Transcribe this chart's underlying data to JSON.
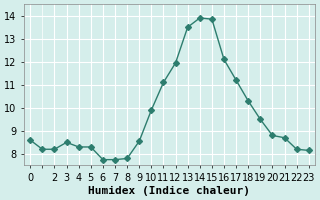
{
  "x": [
    0,
    1,
    2,
    3,
    4,
    5,
    6,
    7,
    8,
    9,
    10,
    11,
    12,
    13,
    14,
    15,
    16,
    17,
    18,
    19,
    20,
    21,
    22,
    23
  ],
  "y": [
    8.6,
    8.2,
    8.2,
    8.5,
    8.3,
    8.3,
    7.75,
    7.75,
    7.8,
    8.55,
    9.9,
    11.1,
    11.95,
    13.5,
    13.9,
    13.85,
    12.1,
    11.2,
    10.3,
    9.5,
    8.8,
    8.7,
    8.2,
    8.15
  ],
  "line_color": "#2d7d6e",
  "marker": "D",
  "marker_size": 3,
  "background_color": "#d5eeeb",
  "grid_color": "#ffffff",
  "xlabel": "Humidex (Indice chaleur)",
  "ylim": [
    7.5,
    14.5
  ],
  "xlim": [
    -0.5,
    23.5
  ],
  "yticks": [
    8,
    9,
    10,
    11,
    12,
    13,
    14
  ],
  "xticks": [
    0,
    2,
    3,
    4,
    5,
    6,
    7,
    8,
    9,
    10,
    11,
    12,
    13,
    14,
    15,
    16,
    17,
    18,
    19,
    20,
    21,
    22,
    23
  ],
  "xlabel_fontsize": 8,
  "tick_fontsize": 7
}
